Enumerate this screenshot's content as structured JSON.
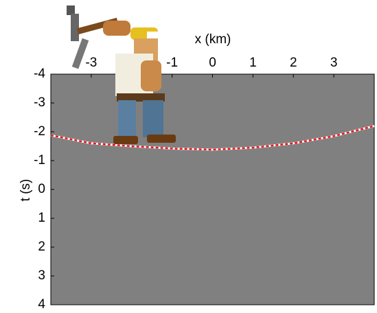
{
  "chart_data": {
    "type": "line",
    "xlabel": "x (km)",
    "ylabel": "t (s)",
    "x": [
      -4,
      -3,
      -2,
      -1,
      0,
      1,
      2,
      3,
      4
    ],
    "series": [
      {
        "color": "#e8141c",
        "values": [
          -1.88,
          -1.6,
          -1.5,
          -1.42,
          -1.38,
          -1.45,
          -1.6,
          -1.85,
          -2.2
        ]
      }
    ],
    "xlim": [
      -4,
      4
    ],
    "ylim": [
      -4,
      4
    ],
    "y_inverted": true,
    "xticks": [
      -3,
      -2,
      -1,
      0,
      1,
      2,
      3
    ],
    "yticks": [
      -4,
      -3,
      -2,
      -1,
      0,
      1,
      2,
      3,
      4
    ],
    "background": "#808080"
  }
}
